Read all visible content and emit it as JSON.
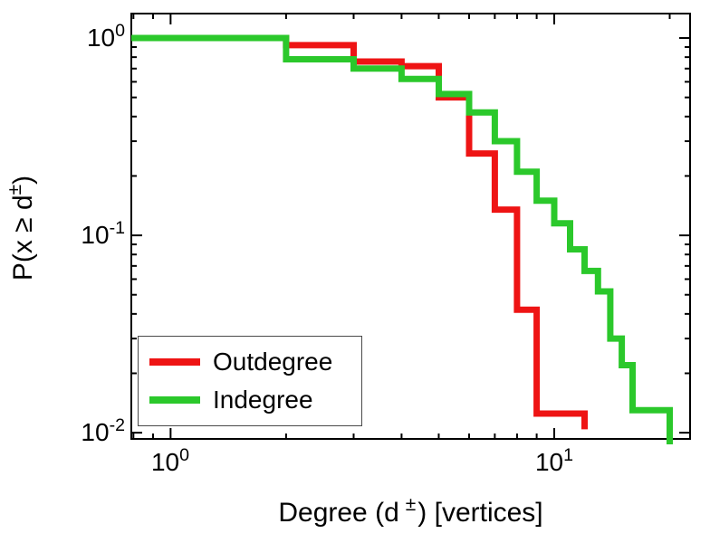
{
  "figure": {
    "background": "#ffffff"
  },
  "chart_data": {
    "type": "line",
    "style": "staircase-ccdf",
    "title": "",
    "x_scale": "log",
    "y_scale": "log",
    "xlim": [
      0.79,
      22.6
    ],
    "ylim": [
      0.0093,
      1.33
    ],
    "xlabel": "Degree (d±) [vertices]",
    "ylabel": "P(x ≥ d±)",
    "xlabel_parts": {
      "pre": "Degree (d",
      "sup": "±",
      "post": ") [vertices]"
    },
    "ylabel_parts": {
      "pre": "P(x ≥ d",
      "sup": "±",
      "post": ")"
    },
    "x_major_ticks": [
      1,
      10
    ],
    "y_major_ticks": [
      1,
      0.1,
      0.01
    ],
    "x_tick_labels": [
      {
        "base": "10",
        "exp": "0"
      },
      {
        "base": "10",
        "exp": "1"
      }
    ],
    "y_tick_labels": [
      {
        "base": "10",
        "exp": "0"
      },
      {
        "base": "10",
        "exp": "-1"
      },
      {
        "base": "10",
        "exp": "-2"
      }
    ],
    "grid": false,
    "legend": {
      "position": "southwest",
      "items": [
        "Outdegree",
        "Indegree"
      ]
    },
    "line_width": 7,
    "axis_color": "#000000",
    "series": [
      {
        "name": "Outdegree",
        "color": "#ee1414",
        "x_edges": [
          0.79,
          2,
          3,
          4,
          5,
          6,
          7,
          8,
          9,
          12
        ],
        "ccdf": [
          1.0,
          0.92,
          0.76,
          0.72,
          0.5,
          0.26,
          0.135,
          0.042,
          0.0125
        ],
        "end_p": 0.0104
      },
      {
        "name": "Indegree",
        "color": "#2bc82b",
        "x_edges": [
          0.79,
          2,
          3,
          4,
          5,
          6,
          7,
          8,
          9,
          10,
          11,
          12,
          13,
          14,
          15,
          16,
          20
        ],
        "ccdf": [
          1.0,
          0.78,
          0.7,
          0.62,
          0.52,
          0.42,
          0.3,
          0.21,
          0.15,
          0.115,
          0.085,
          0.066,
          0.052,
          0.03,
          0.022,
          0.013
        ],
        "end_p": 0.008
      }
    ]
  }
}
